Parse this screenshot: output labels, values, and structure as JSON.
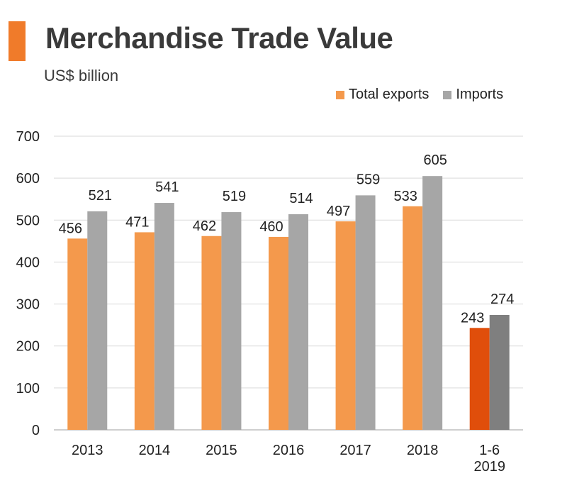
{
  "header": {
    "title": "Merchandise Trade Value",
    "subtitle": "US$ billion"
  },
  "colors": {
    "accent": "#f07b2a",
    "exports": "#f4994c",
    "exports_highlight": "#e04e0b",
    "imports": "#a6a6a6",
    "imports_highlight": "#7f7f7f",
    "grid": "#d9d9d9",
    "axis": "#bfbfbf"
  },
  "chart_data": {
    "type": "bar",
    "title": "",
    "xlabel": "",
    "ylabel": "",
    "ylim": [
      0,
      700
    ],
    "yticks": [
      0,
      100,
      200,
      300,
      400,
      500,
      600,
      700
    ],
    "grid": true,
    "legend_position": "top-right",
    "categories": [
      [
        "2013"
      ],
      [
        "2014"
      ],
      [
        "2015"
      ],
      [
        "2016"
      ],
      [
        "2017"
      ],
      [
        "2018"
      ],
      [
        "1-6",
        "2019"
      ]
    ],
    "series": [
      {
        "name": "Total exports",
        "values": [
          456,
          471,
          462,
          460,
          497,
          533,
          243
        ]
      },
      {
        "name": "Imports",
        "values": [
          521,
          541,
          519,
          514,
          559,
          605,
          274
        ]
      }
    ]
  }
}
